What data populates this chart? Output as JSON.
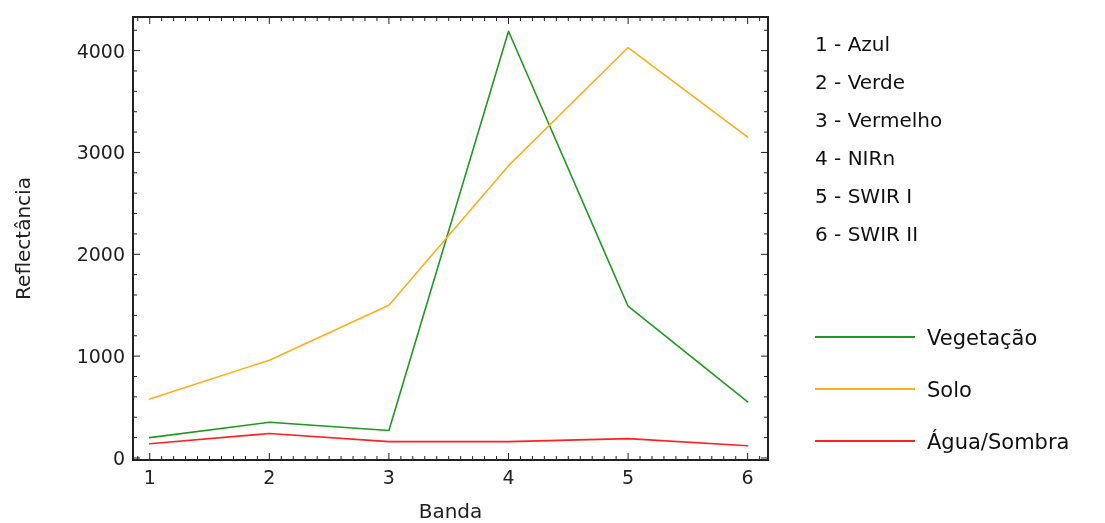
{
  "chart_data": {
    "type": "line",
    "xlabel": "Banda",
    "ylabel": "Reflectância",
    "xlim": [
      0.86,
      6.17
    ],
    "ylim": [
      -20,
      4330
    ],
    "xticks": [
      {
        "value": 0.9,
        "label": null
      },
      1,
      {
        "value": 1.1,
        "label": null
      },
      {
        "value": 1.2,
        "label": null
      },
      {
        "value": 1.3,
        "label": null
      },
      {
        "value": 1.4,
        "label": null
      },
      {
        "value": 1.5,
        "label": null
      },
      {
        "value": 1.6,
        "label": null
      },
      {
        "value": 1.7,
        "label": null
      },
      {
        "value": 1.8,
        "label": null
      },
      {
        "value": 1.9,
        "label": null
      },
      2,
      {
        "value": 2.1,
        "label": null
      },
      {
        "value": 2.2,
        "label": null
      },
      {
        "value": 2.3,
        "label": null
      },
      {
        "value": 2.4,
        "label": null
      },
      {
        "value": 2.5,
        "label": null
      },
      {
        "value": 2.6,
        "label": null
      },
      {
        "value": 2.7,
        "label": null
      },
      {
        "value": 2.8,
        "label": null
      },
      {
        "value": 2.9,
        "label": null
      },
      3,
      {
        "value": 3.1,
        "label": null
      },
      {
        "value": 3.2,
        "label": null
      },
      {
        "value": 3.3,
        "label": null
      },
      {
        "value": 3.4,
        "label": null
      },
      {
        "value": 3.5,
        "label": null
      },
      {
        "value": 3.6,
        "label": null
      },
      {
        "value": 3.7,
        "label": null
      },
      {
        "value": 3.8,
        "label": null
      },
      {
        "value": 3.9,
        "label": null
      },
      4,
      {
        "value": 4.1,
        "label": null
      },
      {
        "value": 4.2,
        "label": null
      },
      {
        "value": 4.3,
        "label": null
      },
      {
        "value": 4.4,
        "label": null
      },
      {
        "value": 4.5,
        "label": null
      },
      {
        "value": 4.6,
        "label": null
      },
      {
        "value": 4.7,
        "label": null
      },
      {
        "value": 4.8,
        "label": null
      },
      {
        "value": 4.9,
        "label": null
      },
      5,
      {
        "value": 5.1,
        "label": null
      },
      {
        "value": 5.2,
        "label": null
      },
      {
        "value": 5.3,
        "label": null
      },
      {
        "value": 5.4,
        "label": null
      },
      {
        "value": 5.5,
        "label": null
      },
      {
        "value": 5.6,
        "label": null
      },
      {
        "value": 5.7,
        "label": null
      },
      {
        "value": 5.8,
        "label": null
      },
      {
        "value": 5.9,
        "label": null
      },
      6,
      {
        "value": 6.1,
        "label": null
      }
    ],
    "yticks": [
      0,
      {
        "value": 200,
        "label": null
      },
      {
        "value": 400,
        "label": null
      },
      {
        "value": 600,
        "label": null
      },
      {
        "value": 800,
        "label": null
      },
      1000,
      {
        "value": 1200,
        "label": null
      },
      {
        "value": 1400,
        "label": null
      },
      {
        "value": 1600,
        "label": null
      },
      {
        "value": 1800,
        "label": null
      },
      2000,
      {
        "value": 2200,
        "label": null
      },
      {
        "value": 2400,
        "label": null
      },
      {
        "value": 2600,
        "label": null
      },
      {
        "value": 2800,
        "label": null
      },
      3000,
      {
        "value": 3200,
        "label": null
      },
      {
        "value": 3400,
        "label": null
      },
      {
        "value": 3600,
        "label": null
      },
      {
        "value": 3800,
        "label": null
      },
      4000,
      {
        "value": 4200,
        "label": null
      }
    ],
    "x": [
      1,
      2,
      3,
      4,
      5,
      6
    ],
    "series": [
      {
        "name": "Vegetação",
        "color": "#1e9a1e",
        "values": [
          200,
          350,
          270,
          4190,
          1490,
          550
        ]
      },
      {
        "name": "Solo",
        "color": "#ffae1a",
        "values": [
          580,
          960,
          1500,
          2870,
          4030,
          3150
        ]
      },
      {
        "name": "Água/Sombra",
        "color": "#ff2020",
        "values": [
          140,
          240,
          160,
          160,
          190,
          120
        ]
      }
    ],
    "legend": "right",
    "grid": false,
    "marker": "none",
    "line_style": "solid",
    "annotations": [
      "1 - Azul",
      "2 - Verde",
      "3 - Vermelho",
      "4 - NIRn",
      "5 - SWIR I",
      "6 - SWIR II"
    ]
  }
}
